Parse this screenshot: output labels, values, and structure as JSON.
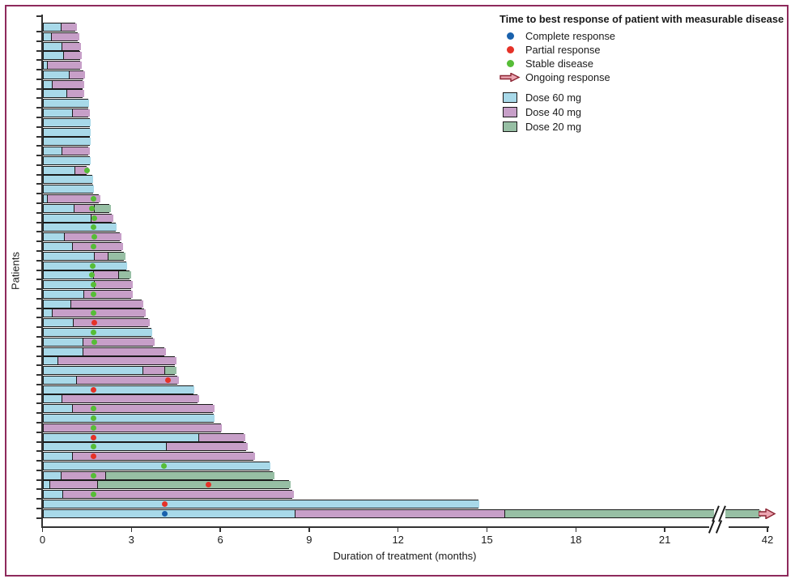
{
  "figure": {
    "frame_color": "#8e2a5c",
    "background": "#ffffff"
  },
  "legend": {
    "title": "Time to best response of patient with measurable disease",
    "response_items": [
      {
        "name": "complete-response",
        "label": "Complete response",
        "marker": "dot",
        "color": "#1961ac"
      },
      {
        "name": "partial-response",
        "label": "Partial response",
        "marker": "dot",
        "color": "#e53228"
      },
      {
        "name": "stable-disease",
        "label": "Stable disease",
        "marker": "dot",
        "color": "#56bd37"
      },
      {
        "name": "ongoing-response",
        "label": "Ongoing response",
        "marker": "arrow",
        "color": "#8b2332"
      }
    ],
    "dose_items": [
      {
        "name": "dose-60",
        "label": "Dose 60 mg",
        "color": "#a8d9e9"
      },
      {
        "name": "dose-40",
        "label": "Dose 40 mg",
        "color": "#c79fc8"
      },
      {
        "name": "dose-20",
        "label": "Dose 20 mg",
        "color": "#97bfa4"
      }
    ]
  },
  "chart_data": {
    "type": "bar",
    "subtype": "swimmer-plot",
    "orientation": "horizontal",
    "title": "Time to best response of patient with measurable disease",
    "xlabel": "Duration of treatment (months)",
    "ylabel": "Patients",
    "x_ticks": [
      0,
      3,
      6,
      9,
      12,
      15,
      18,
      21,
      42
    ],
    "axis_break": {
      "after_month": 22,
      "resumes_at": 42
    },
    "dose_colors": {
      "60": "#a8d9e9",
      "40": "#c79fc8",
      "20": "#97bfa4"
    },
    "response_colors": {
      "complete": "#1961ac",
      "partial": "#e53228",
      "stable": "#56bd37"
    },
    "arrow_colors": {
      "stroke": "#8b2332",
      "fill": "#eba6b2"
    },
    "patients": [
      {
        "doses": [
          [
            "60",
            0.6
          ],
          [
            "40",
            1.11
          ]
        ],
        "response": null
      },
      {
        "doses": [
          [
            "60",
            0.25
          ],
          [
            "40",
            1.19
          ]
        ],
        "response": null
      },
      {
        "doses": [
          [
            "60",
            0.61
          ],
          [
            "40",
            1.25
          ]
        ],
        "response": null
      },
      {
        "doses": [
          [
            "60",
            0.66
          ],
          [
            "40",
            1.27
          ]
        ],
        "response": null
      },
      {
        "doses": [
          [
            "60",
            0.13
          ],
          [
            "40",
            1.27
          ]
        ],
        "response": null
      },
      {
        "doses": [
          [
            "60",
            0.87
          ],
          [
            "40",
            1.37
          ]
        ],
        "response": null
      },
      {
        "doses": [
          [
            "60",
            0.3
          ],
          [
            "40",
            1.36
          ]
        ],
        "response": null
      },
      {
        "doses": [
          [
            "60",
            0.78
          ],
          [
            "40",
            1.36
          ]
        ],
        "response": null
      },
      {
        "doses": [
          [
            "60",
            1.55
          ]
        ],
        "response": null
      },
      {
        "doses": [
          [
            "60",
            0.98
          ],
          [
            "40",
            1.54
          ]
        ],
        "response": null
      },
      {
        "doses": [
          [
            "60",
            1.59
          ]
        ],
        "response": null
      },
      {
        "doses": [
          [
            "60",
            1.59
          ]
        ],
        "response": null
      },
      {
        "doses": [
          [
            "60",
            1.59
          ]
        ],
        "response": null
      },
      {
        "doses": [
          [
            "60",
            0.61
          ],
          [
            "40",
            1.54
          ]
        ],
        "response": null
      },
      {
        "doses": [
          [
            "60",
            1.61
          ]
        ],
        "response": null
      },
      {
        "doses": [
          [
            "60",
            1.04
          ],
          [
            "40",
            1.48
          ]
        ],
        "response": [
          "stable",
          1.5
        ]
      },
      {
        "doses": [
          [
            "60",
            1.68
          ]
        ],
        "response": null
      },
      {
        "doses": [
          [
            "60",
            1.71
          ]
        ],
        "response": null
      },
      {
        "doses": [
          [
            "60",
            0.13
          ],
          [
            "40",
            1.91
          ]
        ],
        "response": [
          "stable",
          1.71
        ]
      },
      {
        "doses": [
          [
            "60",
            1.02
          ],
          [
            "40",
            1.71
          ],
          [
            "20",
            2.25
          ]
        ],
        "response": [
          "stable",
          1.68
        ]
      },
      {
        "doses": [
          [
            "60",
            1.59
          ],
          [
            "40",
            2.33
          ]
        ],
        "response": [
          "stable",
          1.75
        ]
      },
      {
        "doses": [
          [
            "60",
            2.48
          ]
        ],
        "response": [
          "stable",
          1.73
        ]
      },
      {
        "doses": [
          [
            "60",
            0.69
          ],
          [
            "40",
            2.61
          ]
        ],
        "response": [
          "stable",
          1.75
        ]
      },
      {
        "doses": [
          [
            "60",
            0.96
          ],
          [
            "40",
            2.66
          ]
        ],
        "response": [
          "stable",
          1.73
        ]
      },
      {
        "doses": [
          [
            "60",
            1.71
          ],
          [
            "40",
            2.18
          ],
          [
            "20",
            2.75
          ]
        ],
        "response": null
      },
      {
        "doses": [
          [
            "60",
            2.82
          ]
        ],
        "response": [
          "stable",
          1.7
        ]
      },
      {
        "doses": [
          [
            "60",
            1.68
          ],
          [
            "40",
            2.52
          ],
          [
            "20",
            2.93
          ]
        ],
        "response": [
          "stable",
          1.68
        ]
      },
      {
        "doses": [
          [
            "60",
            1.71
          ],
          [
            "40",
            2.98
          ]
        ],
        "response": [
          "stable",
          1.71
        ]
      },
      {
        "doses": [
          [
            "60",
            1.34
          ],
          [
            "40",
            2.98
          ]
        ],
        "response": [
          "stable",
          1.73
        ]
      },
      {
        "doses": [
          [
            "60",
            0.91
          ],
          [
            "40",
            3.34
          ]
        ],
        "response": null
      },
      {
        "doses": [
          [
            "60",
            0.28
          ],
          [
            "40",
            3.44
          ]
        ],
        "response": [
          "stable",
          1.73
        ]
      },
      {
        "doses": [
          [
            "60",
            1.0
          ],
          [
            "40",
            3.56
          ]
        ],
        "response": [
          "partial",
          1.75
        ]
      },
      {
        "doses": [
          [
            "60",
            3.68
          ]
        ],
        "response": [
          "stable",
          1.71
        ]
      },
      {
        "doses": [
          [
            "60",
            1.32
          ],
          [
            "40",
            3.74
          ]
        ],
        "response": [
          "stable",
          1.75
        ]
      },
      {
        "doses": [
          [
            "60",
            1.32
          ],
          [
            "40",
            4.12
          ]
        ],
        "response": null
      },
      {
        "doses": [
          [
            "60",
            0.48
          ],
          [
            "40",
            4.46
          ]
        ],
        "response": null
      },
      {
        "doses": [
          [
            "60",
            3.35
          ],
          [
            "40",
            4.08
          ],
          [
            "20",
            4.46
          ]
        ],
        "response": null
      },
      {
        "doses": [
          [
            "60",
            1.11
          ],
          [
            "40",
            4.56
          ]
        ],
        "response": [
          "partial",
          4.24
        ]
      },
      {
        "doses": [
          [
            "60",
            5.1
          ]
        ],
        "response": [
          "partial",
          1.73
        ]
      },
      {
        "doses": [
          [
            "60",
            0.61
          ],
          [
            "40",
            5.23
          ]
        ],
        "response": null
      },
      {
        "doses": [
          [
            "60",
            0.98
          ],
          [
            "40",
            5.74
          ]
        ],
        "response": [
          "stable",
          1.73
        ]
      },
      {
        "doses": [
          [
            "60",
            5.78
          ]
        ],
        "response": [
          "stable",
          1.71
        ]
      },
      {
        "doses": [
          [
            "40",
            6.03
          ]
        ],
        "response": [
          "stable",
          1.71
        ]
      },
      {
        "doses": [
          [
            "60",
            5.23
          ],
          [
            "40",
            6.79
          ]
        ],
        "response": [
          "partial",
          1.73
        ]
      },
      {
        "doses": [
          [
            "60",
            4.14
          ],
          [
            "40",
            6.86
          ]
        ],
        "response": [
          "stable",
          1.71
        ]
      },
      {
        "doses": [
          [
            "60",
            0.98
          ],
          [
            "40",
            7.13
          ]
        ],
        "response": [
          "partial",
          1.73
        ]
      },
      {
        "doses": [
          [
            "60",
            7.66
          ]
        ],
        "response": [
          "stable",
          4.1
        ]
      },
      {
        "doses": [
          [
            "60",
            0.6
          ],
          [
            "40",
            2.1
          ],
          [
            "20",
            7.77
          ]
        ],
        "response": [
          "stable",
          1.71
        ]
      },
      {
        "doses": [
          [
            "60",
            0.2
          ],
          [
            "40",
            1.82
          ],
          [
            "20",
            8.31
          ]
        ],
        "response": [
          "partial",
          5.6
        ]
      },
      {
        "doses": [
          [
            "60",
            0.63
          ],
          [
            "40",
            8.43
          ]
        ],
        "response": [
          "stable",
          1.73
        ]
      },
      {
        "doses": [
          [
            "60",
            14.7
          ]
        ],
        "response": [
          "partial",
          4.12
        ]
      },
      {
        "doses": [
          [
            "60",
            8.47
          ],
          [
            "40",
            15.56
          ],
          [
            "20",
            41.5
          ]
        ],
        "response": [
          "complete",
          4.12
        ],
        "ongoing": true
      }
    ]
  }
}
